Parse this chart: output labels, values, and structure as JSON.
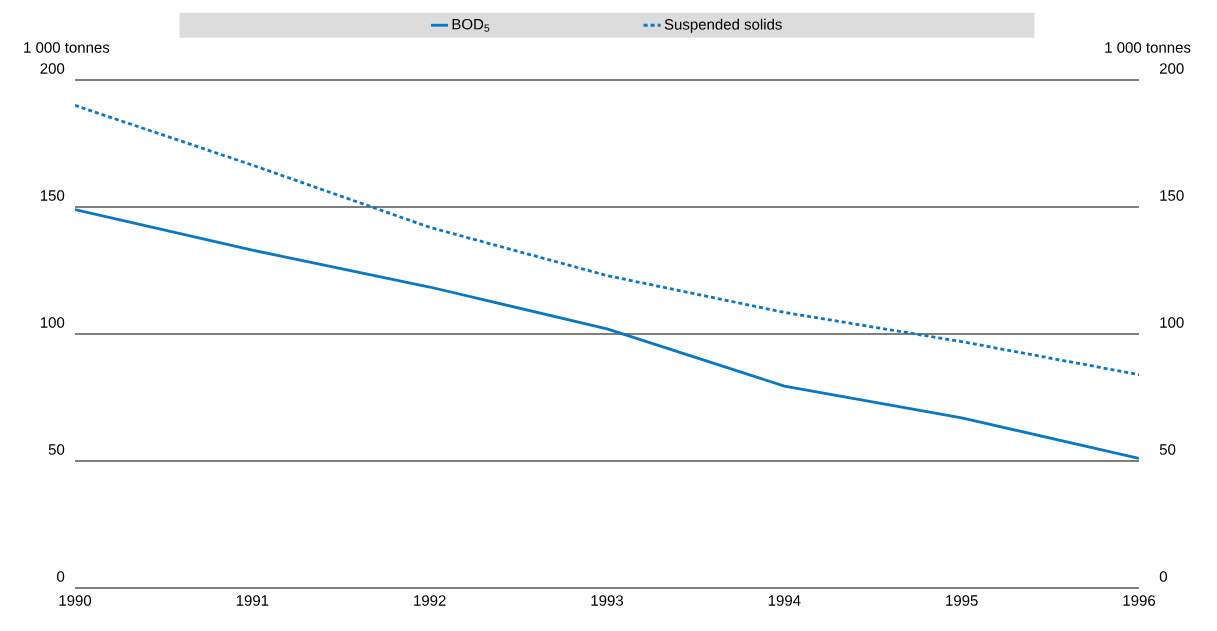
{
  "chart_data": {
    "type": "line",
    "x": [
      1990,
      1991,
      1992,
      1993,
      1994,
      1995,
      1996
    ],
    "series": [
      {
        "name": "BOD$_{5}$",
        "color": "#0a78c4",
        "line_style": "solid",
        "values": [
          149,
          133,
          118.5,
          102,
          79.5,
          67,
          51
        ]
      },
      {
        "name": "Suspended solids",
        "color": "#0a78c4",
        "line_style": "dotted",
        "values": [
          190,
          166.5,
          142,
          123,
          108.5,
          97,
          84
        ]
      }
    ],
    "ylabel": "1 000 tonnes",
    "y2label": "1 000 tonnes",
    "xlim": [
      1990,
      1996
    ],
    "xticks": [
      1990,
      1991,
      1992,
      1993,
      1994,
      1995,
      1996
    ],
    "ylim": [
      0,
      200
    ],
    "yticks": [
      0,
      50,
      100,
      150,
      200
    ],
    "y2lim": [
      0,
      200
    ],
    "y2ticks": [
      0,
      50,
      100,
      150,
      200
    ],
    "grid": "y",
    "legend": "top",
    "marker": "none"
  }
}
